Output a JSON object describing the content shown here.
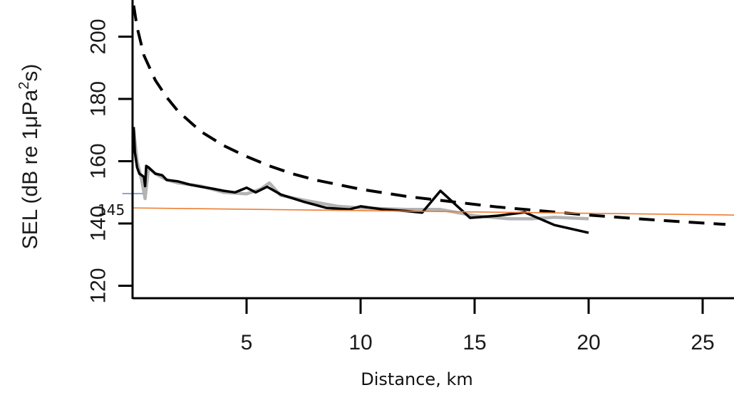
{
  "chart_data": {
    "type": "line",
    "title": "",
    "xlabel": "Distance, km",
    "ylabel": "SEL (dB re 1μPa²s)",
    "ylabel_parts": {
      "main": "SEL (dB re 1μPa",
      "sup": "2",
      "tail": "s)"
    },
    "xlim": [
      0,
      26
    ],
    "ylim": [
      117,
      212
    ],
    "x_ticks": [
      5,
      10,
      15,
      20,
      25
    ],
    "y_ticks": [
      120,
      140,
      160,
      180,
      200
    ],
    "grid": false,
    "legend": null,
    "series": [
      {
        "name": "modelled-dashed",
        "style": "dashed",
        "color": "#000000",
        "x": [
          0.05,
          0.2,
          0.5,
          1,
          1.5,
          2,
          3,
          4,
          5,
          6,
          7,
          8,
          9,
          10,
          12,
          14,
          16,
          18,
          20,
          22,
          24,
          26
        ],
        "y": [
          210,
          203,
          194,
          186,
          180.5,
          176,
          169.5,
          165,
          161.5,
          158.5,
          156,
          154,
          152.5,
          151,
          148.7,
          147,
          145.3,
          144,
          142.7,
          141.6,
          140.6,
          139.7
        ]
      },
      {
        "name": "measured-black",
        "style": "solid",
        "color": "#000000",
        "x": [
          0.05,
          0.1,
          0.2,
          0.3,
          0.5,
          0.55,
          0.6,
          0.7,
          1.0,
          1.3,
          1.5,
          2.0,
          2.5,
          3.0,
          3.5,
          4.0,
          4.5,
          5.0,
          5.4,
          5.9,
          6.5,
          7.5,
          8.5,
          9.5,
          10.0,
          11.0,
          12.0,
          12.7,
          13.5,
          14.8,
          16.0,
          17.2,
          18.5,
          20.0
        ],
        "y": [
          171,
          163,
          158,
          156,
          155,
          152,
          158.5,
          158,
          156,
          155.5,
          154,
          153.5,
          152.5,
          151.8,
          151.2,
          150.5,
          150,
          151.5,
          150,
          151.8,
          149.3,
          147,
          145,
          144.5,
          145.5,
          144.5,
          144,
          143.5,
          150.5,
          141.8,
          142.5,
          143.6,
          139.5,
          137
        ]
      },
      {
        "name": "measured-gray",
        "style": "solid",
        "color": "#b3b3b3",
        "x": [
          0.05,
          0.2,
          0.4,
          0.55,
          0.7,
          1.0,
          1.5,
          2.0,
          3.0,
          4.0,
          5.0,
          5.6,
          6.0,
          6.5,
          7.5,
          9.0,
          10.0,
          12.0,
          13.5,
          15.0,
          16.5,
          17.5,
          18.5,
          20.0
        ],
        "y": [
          170,
          160,
          154,
          148,
          158,
          156,
          154,
          153,
          152,
          150,
          149.5,
          151,
          153,
          149,
          147.5,
          145.5,
          145,
          144.5,
          144.5,
          142.5,
          141.5,
          141.5,
          142,
          141.5
        ]
      }
    ],
    "reference_lines": [
      {
        "name": "threshold-145",
        "label": "145",
        "color": "#ed7d31",
        "x": [
          0,
          26.5
        ],
        "y": [
          145,
          142.7
        ]
      },
      {
        "name": "blue-marker",
        "color": "#4472c4",
        "x": [
          -0.45,
          0.45
        ],
        "y": [
          149.6,
          149.6
        ]
      }
    ]
  },
  "labels": {
    "ref_value": "145",
    "x_title": "Distance, km"
  }
}
